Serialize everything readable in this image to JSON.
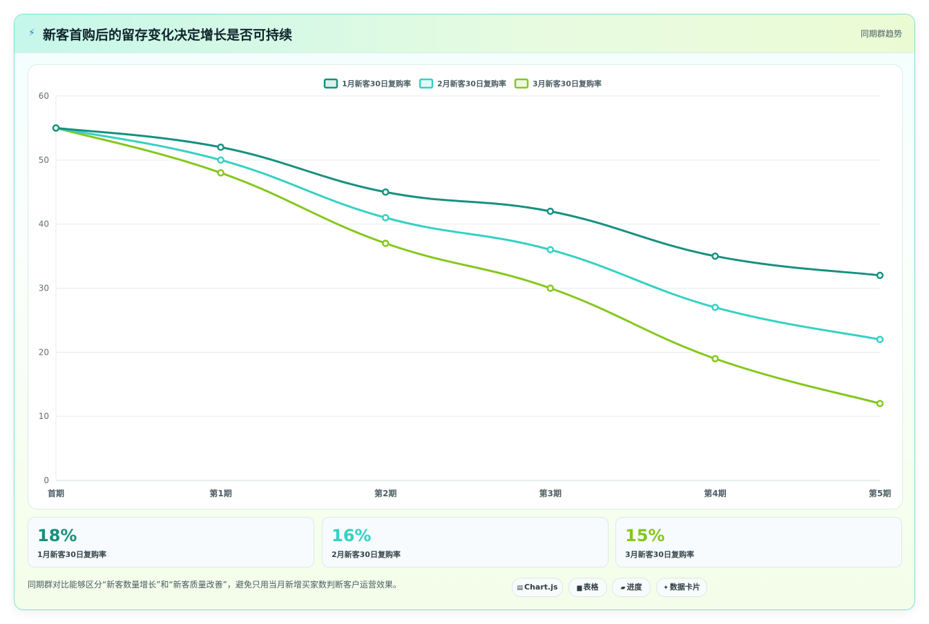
{
  "header": {
    "title": "新客首购后的留存变化决定增长是否可持续",
    "tag": "同期群趋势"
  },
  "chart_data": {
    "type": "line",
    "categories": [
      "首期",
      "第1期",
      "第2期",
      "第3期",
      "第4期",
      "第5期"
    ],
    "series": [
      {
        "name": "1月新客30日复购率",
        "values": [
          55,
          52,
          45,
          42,
          35,
          32
        ],
        "color": "#16907f"
      },
      {
        "name": "2月新客30日复购率",
        "values": [
          55,
          50,
          41,
          36,
          27,
          22
        ],
        "color": "#34d1c4"
      },
      {
        "name": "3月新客30日复购率",
        "values": [
          55,
          48,
          37,
          30,
          19,
          12
        ],
        "color": "#84c71c"
      }
    ],
    "ylim": [
      0,
      60
    ],
    "yticks": [
      0,
      10,
      20,
      30,
      40,
      50,
      60
    ],
    "grid": true,
    "legend": "top-center"
  },
  "kpis": [
    {
      "value": "18%",
      "label": "1月新客30日复购率",
      "color": "#16907f"
    },
    {
      "value": "16%",
      "label": "2月新客30日复购率",
      "color": "#34d1c4"
    },
    {
      "value": "15%",
      "label": "3月新客30日复购率",
      "color": "#84c71c"
    }
  ],
  "footer": {
    "note": "同期群对比能够区分“新客数量增长”和“新客质量改善”，避免只用当月新增买家数判断客户运营效果。",
    "chips": [
      {
        "icon": "chart-icon",
        "glyph": "▤",
        "label": "Chart.js"
      },
      {
        "icon": "table-icon",
        "glyph": "▆",
        "label": "表格"
      },
      {
        "icon": "progress-icon",
        "glyph": "▰",
        "label": "进度"
      },
      {
        "icon": "data-card-icon",
        "glyph": "✦",
        "label": "数据卡片"
      }
    ]
  }
}
